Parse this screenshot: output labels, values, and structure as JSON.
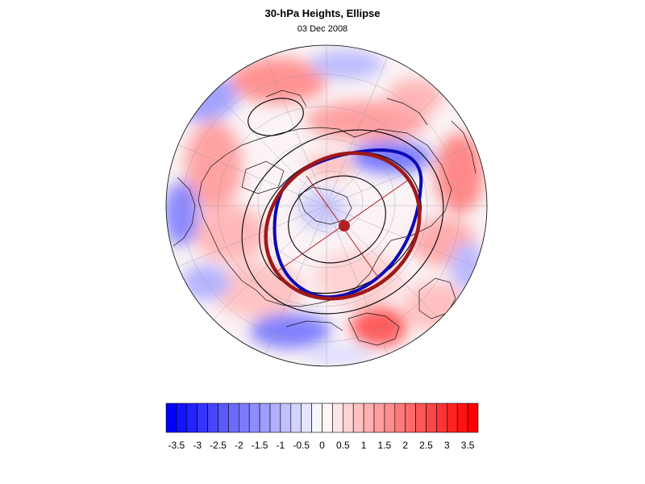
{
  "title": "30-hPa Heights, Ellipse",
  "subtitle": "03 Dec 2008",
  "projection": "north-polar-orthographic",
  "map": {
    "anomaly_fill": "diverging blue-white-red",
    "overlays": [
      {
        "name": "height contours",
        "color": "#000000"
      },
      {
        "name": "fitted ellipse",
        "color": "#a01818"
      },
      {
        "name": "vortex edge",
        "color": "#0a0ab4"
      },
      {
        "name": "ellipse center",
        "color": "#b22222"
      }
    ]
  },
  "colorbar": {
    "min": -3.75,
    "max": 3.75,
    "step": 0.25,
    "low_color": "#0000ff",
    "mid_color": "#ffffff",
    "high_color": "#ff0000",
    "tick_labels": [
      "-3.5",
      "-3",
      "-2.5",
      "-2",
      "-1.5",
      "-1",
      "-0.5",
      "0",
      "0.5",
      "1",
      "1.5",
      "2",
      "2.5",
      "3",
      "3.5"
    ]
  }
}
